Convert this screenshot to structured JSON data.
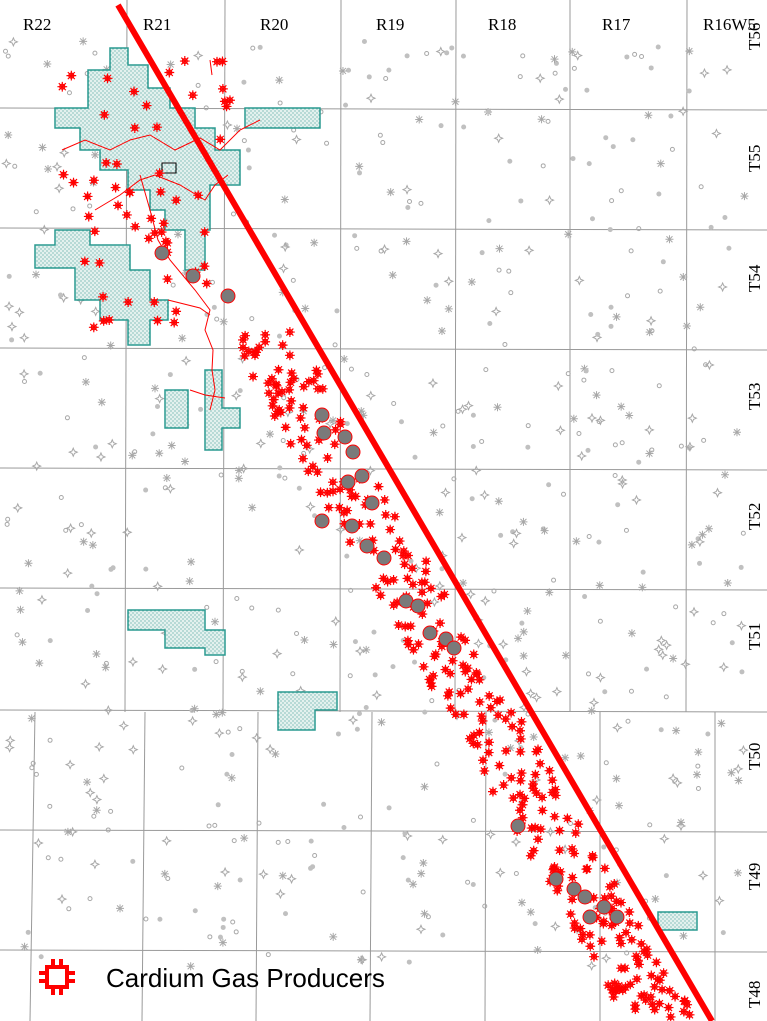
{
  "map": {
    "range_labels": [
      "R22",
      "R21",
      "R20",
      "R19",
      "R18",
      "R17",
      "R16W5"
    ],
    "township_labels": [
      "T55",
      "T54",
      "T53",
      "T52",
      "T51",
      "T50",
      "T49",
      "T48"
    ],
    "top_right_fragment": "T56",
    "legend": {
      "label": "Cardium Gas Producers",
      "symbol": "gas-producer-symbol",
      "color": "#ff0000"
    },
    "colors": {
      "trend_line": "#ff0000",
      "producer": "#ff0000",
      "producer_highlight": "#7a7a7a",
      "unit_outline": "#2a9a90",
      "unit_fill": "#d9ece9",
      "grid": "#9a9a9a",
      "background_wells": "#a8a8a8"
    }
  }
}
